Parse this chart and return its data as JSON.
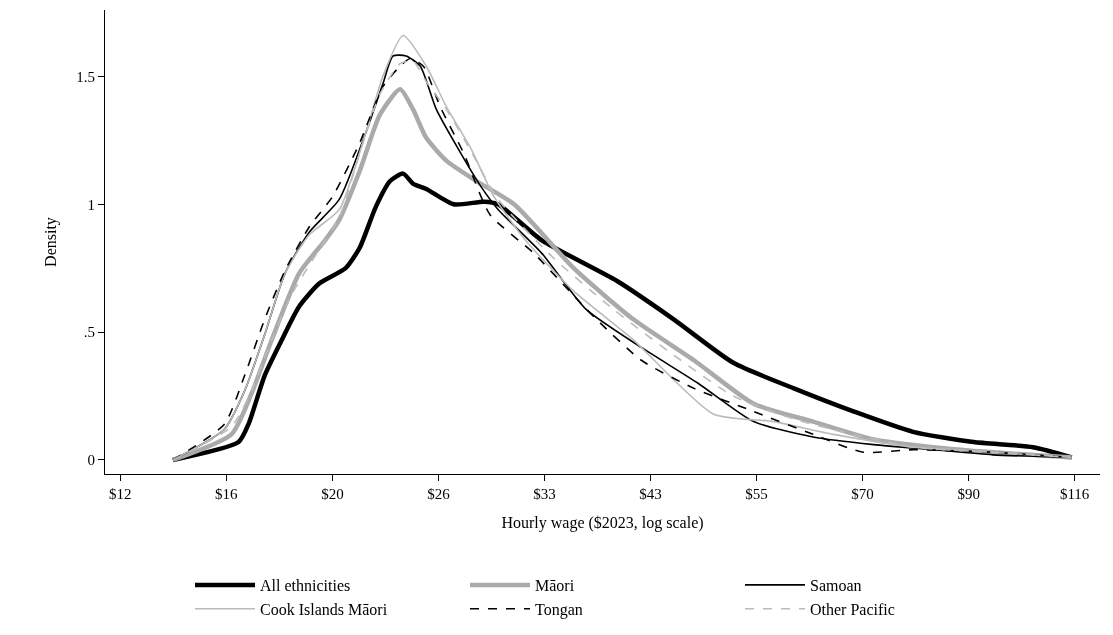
{
  "chart_data": {
    "type": "line",
    "xlabel": "Hourly wage ($2023, log scale)",
    "ylabel": "Density",
    "log": "x",
    "xlim": [
      11.75,
      122.7
    ],
    "xticks": [
      {
        "value": 12.18,
        "label": "$12"
      },
      {
        "value": 15.64,
        "label": "$16"
      },
      {
        "value": 20.09,
        "label": "$20"
      },
      {
        "value": 25.79,
        "label": "$26"
      },
      {
        "value": 33.12,
        "label": "$33"
      },
      {
        "value": 42.52,
        "label": "$43"
      },
      {
        "value": 54.6,
        "label": "$55"
      },
      {
        "value": 70.11,
        "label": "$70"
      },
      {
        "value": 90.02,
        "label": "$90"
      },
      {
        "value": 115.58,
        "label": "$116"
      }
    ],
    "ylim": [
      -0.055,
      1.76
    ],
    "yticks": [
      0,
      {
        "value": 0.5,
        "label": ".5"
      },
      1,
      1.5
    ],
    "legend": "bottom",
    "marker": "none",
    "series": [
      {
        "name": "All ethnicities",
        "color": "#000000",
        "line_style": "solid",
        "x": [
          13.79,
          16.1,
          16.48,
          17.12,
          17.83,
          18.57,
          19.47,
          20.72,
          21.42,
          22.25,
          23.0,
          23.73,
          24.3,
          25.06,
          26.73,
          28.71,
          29.68,
          32.88,
          39.3,
          44.91,
          51.69,
          59.62,
          68.61,
          78.96,
          91.09,
          104.8,
          114.8
        ],
        "values": [
          0.0,
          0.07,
          0.14,
          0.33,
          0.47,
          0.6,
          0.69,
          0.75,
          0.83,
          0.99,
          1.09,
          1.12,
          1.08,
          1.06,
          1.0,
          1.01,
          1.0,
          0.86,
          0.7,
          0.55,
          0.38,
          0.28,
          0.19,
          0.11,
          0.07,
          0.05,
          0.01
        ]
      },
      {
        "name": "Māori",
        "color": "#aaaaaa",
        "line_style": "solid",
        "x": [
          13.79,
          15.83,
          16.6,
          17.41,
          18.57,
          19.75,
          20.42,
          21.42,
          22.46,
          23.56,
          24.3,
          25.06,
          26.29,
          28.23,
          30.83,
          35.48,
          40.83,
          47.11,
          54.21,
          62.38,
          71.96,
          82.82,
          95.31,
          114.8
        ],
        "values": [
          0.0,
          0.1,
          0.26,
          0.47,
          0.73,
          0.86,
          0.94,
          1.13,
          1.35,
          1.45,
          1.37,
          1.26,
          1.17,
          1.09,
          1.0,
          0.75,
          0.55,
          0.39,
          0.22,
          0.15,
          0.08,
          0.05,
          0.03,
          0.01
        ]
      },
      {
        "name": "Samoan",
        "color": "#000000",
        "line_style": "solid",
        "x": [
          13.79,
          15.57,
          16.33,
          17.12,
          17.96,
          19.01,
          20.42,
          21.73,
          22.62,
          23.17,
          23.9,
          24.71,
          25.67,
          27.18,
          28.5,
          29.68,
          32.88,
          36.51,
          41.61,
          47.56,
          54.21,
          62.38,
          71.96,
          82.82,
          95.31,
          114.8
        ],
        "values": [
          0.0,
          0.12,
          0.27,
          0.49,
          0.73,
          0.89,
          1.02,
          1.28,
          1.47,
          1.58,
          1.58,
          1.54,
          1.37,
          1.2,
          1.07,
          0.98,
          0.81,
          0.59,
          0.44,
          0.3,
          0.15,
          0.09,
          0.06,
          0.04,
          0.02,
          0.01
        ]
      },
      {
        "name": "Cook Islands Māori",
        "color": "#bbbbbb",
        "line_style": "solid",
        "x": [
          13.79,
          15.57,
          16.33,
          17.12,
          17.96,
          19.01,
          20.42,
          21.73,
          22.62,
          23.73,
          25.06,
          26.29,
          27.83,
          29.4,
          31.65,
          35.48,
          40.83,
          49.29,
          56.85,
          65.42,
          78.96,
          95.31,
          114.8
        ],
        "values": [
          0.0,
          0.12,
          0.27,
          0.49,
          0.73,
          0.88,
          0.98,
          1.28,
          1.5,
          1.66,
          1.54,
          1.38,
          1.22,
          1.03,
          0.86,
          0.66,
          0.47,
          0.18,
          0.15,
          0.1,
          0.05,
          0.03,
          0.01
        ]
      },
      {
        "name": "Tongan",
        "color": "#000000",
        "line_style": "dashed",
        "x": [
          13.79,
          15.57,
          16.33,
          17.12,
          17.96,
          19.01,
          20.09,
          21.42,
          22.62,
          23.56,
          24.13,
          24.89,
          25.91,
          27.37,
          29.12,
          32.26,
          37.21,
          41.61,
          47.11,
          54.21,
          62.38,
          70.26,
          78.96,
          95.31,
          114.8
        ],
        "values": [
          0.0,
          0.14,
          0.33,
          0.55,
          0.74,
          0.91,
          1.03,
          1.24,
          1.46,
          1.54,
          1.57,
          1.54,
          1.38,
          1.2,
          0.96,
          0.81,
          0.56,
          0.39,
          0.28,
          0.19,
          0.1,
          0.03,
          0.04,
          0.03,
          0.01
        ]
      },
      {
        "name": "Other Pacific",
        "color": "#bbbbbb",
        "line_style": "dashed",
        "x": [
          13.79,
          15.83,
          16.6,
          17.41,
          18.26,
          19.15,
          20.42,
          21.42,
          22.46,
          23.56,
          24.3,
          25.06,
          26.29,
          27.83,
          29.68,
          33.83,
          38.93,
          44.91,
          51.69,
          59.62,
          68.61,
          78.96,
          95.31,
          114.8
        ],
        "values": [
          0.0,
          0.13,
          0.27,
          0.47,
          0.65,
          0.78,
          0.95,
          1.2,
          1.43,
          1.55,
          1.56,
          1.48,
          1.37,
          1.21,
          1.02,
          0.79,
          0.59,
          0.41,
          0.25,
          0.16,
          0.1,
          0.05,
          0.03,
          0.01
        ]
      }
    ]
  }
}
